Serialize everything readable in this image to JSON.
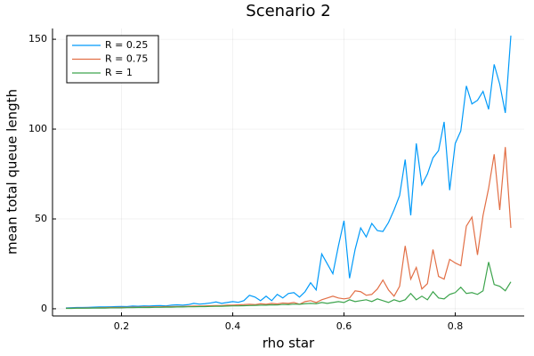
{
  "chart_data": {
    "type": "line",
    "title": "Scenario 2",
    "xlabel": "rho star",
    "ylabel": "mean total queue length",
    "x": [
      0.1,
      0.11,
      0.12,
      0.13,
      0.14,
      0.15,
      0.16,
      0.17,
      0.18,
      0.19,
      0.2,
      0.21,
      0.22,
      0.23,
      0.24,
      0.25,
      0.26,
      0.27,
      0.28,
      0.29,
      0.3,
      0.31,
      0.32,
      0.33,
      0.34,
      0.35,
      0.36,
      0.37,
      0.38,
      0.39,
      0.4,
      0.41,
      0.42,
      0.43,
      0.44,
      0.45,
      0.46,
      0.47,
      0.48,
      0.49,
      0.5,
      0.51,
      0.52,
      0.53,
      0.54,
      0.55,
      0.56,
      0.57,
      0.58,
      0.59,
      0.6,
      0.61,
      0.62,
      0.63,
      0.64,
      0.65,
      0.66,
      0.67,
      0.68,
      0.69,
      0.7,
      0.71,
      0.72,
      0.73,
      0.74,
      0.75,
      0.76,
      0.77,
      0.78,
      0.79,
      0.8,
      0.81,
      0.82,
      0.83,
      0.84,
      0.85,
      0.86,
      0.87,
      0.88,
      0.89,
      0.9
    ],
    "series": [
      {
        "name": "R = 0.25",
        "color": "#009af9",
        "values": [
          0.5,
          0.6,
          0.7,
          0.7,
          0.8,
          0.9,
          1.0,
          1.0,
          1.1,
          1.2,
          1.3,
          1.2,
          1.5,
          1.4,
          1.6,
          1.5,
          1.7,
          1.8,
          1.6,
          2.0,
          2.2,
          2.0,
          2.3,
          3.0,
          2.6,
          2.8,
          3.2,
          3.8,
          3.0,
          3.5,
          4.0,
          3.6,
          4.5,
          7.5,
          6.5,
          4.5,
          7.0,
          4.5,
          8.0,
          6.0,
          8.5,
          9.0,
          6.5,
          9.5,
          14.5,
          10.5,
          30.5,
          25,
          19.5,
          35,
          49,
          17,
          33,
          45,
          40,
          47.5,
          43.5,
          43,
          48,
          55,
          63,
          83,
          52,
          92,
          69,
          75,
          84,
          88,
          104,
          66,
          92,
          99,
          124,
          114,
          116,
          121,
          111,
          136,
          125,
          109,
          152
        ]
      },
      {
        "name": "R = 0.75",
        "color": "#e26f46",
        "values": [
          0.3,
          0.3,
          0.4,
          0.4,
          0.5,
          0.5,
          0.6,
          0.6,
          0.7,
          0.7,
          0.8,
          0.8,
          0.9,
          0.9,
          1.0,
          1.0,
          1.1,
          1.1,
          1.2,
          1.2,
          1.3,
          1.3,
          1.4,
          1.5,
          1.5,
          1.6,
          1.7,
          1.8,
          1.8,
          2.0,
          2.0,
          2.2,
          2.3,
          2.5,
          2.3,
          2.8,
          2.5,
          3.0,
          2.7,
          3.2,
          3,
          3.5,
          2.5,
          4,
          4.5,
          3.5,
          5,
          6,
          7,
          6,
          5.5,
          6,
          10,
          9.5,
          7.5,
          8,
          11,
          16,
          10.5,
          7,
          12.5,
          35,
          16.5,
          23,
          11,
          14,
          33,
          18,
          16.5,
          27.5,
          25.5,
          24,
          46,
          51,
          30,
          52,
          67,
          86,
          55,
          90,
          45
        ]
      },
      {
        "name": "R = 1",
        "color": "#3da44d",
        "values": [
          0.2,
          0.2,
          0.3,
          0.3,
          0.3,
          0.4,
          0.4,
          0.4,
          0.5,
          0.5,
          0.5,
          0.6,
          0.6,
          0.7,
          0.7,
          0.7,
          0.8,
          0.8,
          0.9,
          0.9,
          1.0,
          1.0,
          1.1,
          1.1,
          1.2,
          1.2,
          1.3,
          1.4,
          1.4,
          1.5,
          1.6,
          1.6,
          1.7,
          1.8,
          1.9,
          2.0,
          2.0,
          2.2,
          2.1,
          2.4,
          2.3,
          2.6,
          2.5,
          2.8,
          3.0,
          2.8,
          3.5,
          3,
          3.5,
          4,
          3.5,
          5,
          4,
          4.5,
          5,
          4,
          5.5,
          4.5,
          3.5,
          5,
          4,
          5,
          8.5,
          5,
          7,
          5,
          9.5,
          6,
          5.5,
          8,
          9,
          12,
          8.5,
          9,
          8,
          10,
          26,
          13.5,
          12.5,
          10,
          15
        ]
      }
    ],
    "xlim": [
      0.076,
      0.924
    ],
    "ylim": [
      -4,
      156
    ],
    "xticks": [
      0.2,
      0.4,
      0.6,
      0.8
    ],
    "yticks": [
      0,
      50,
      100,
      150
    ],
    "grid": true,
    "legend": "top-left"
  }
}
